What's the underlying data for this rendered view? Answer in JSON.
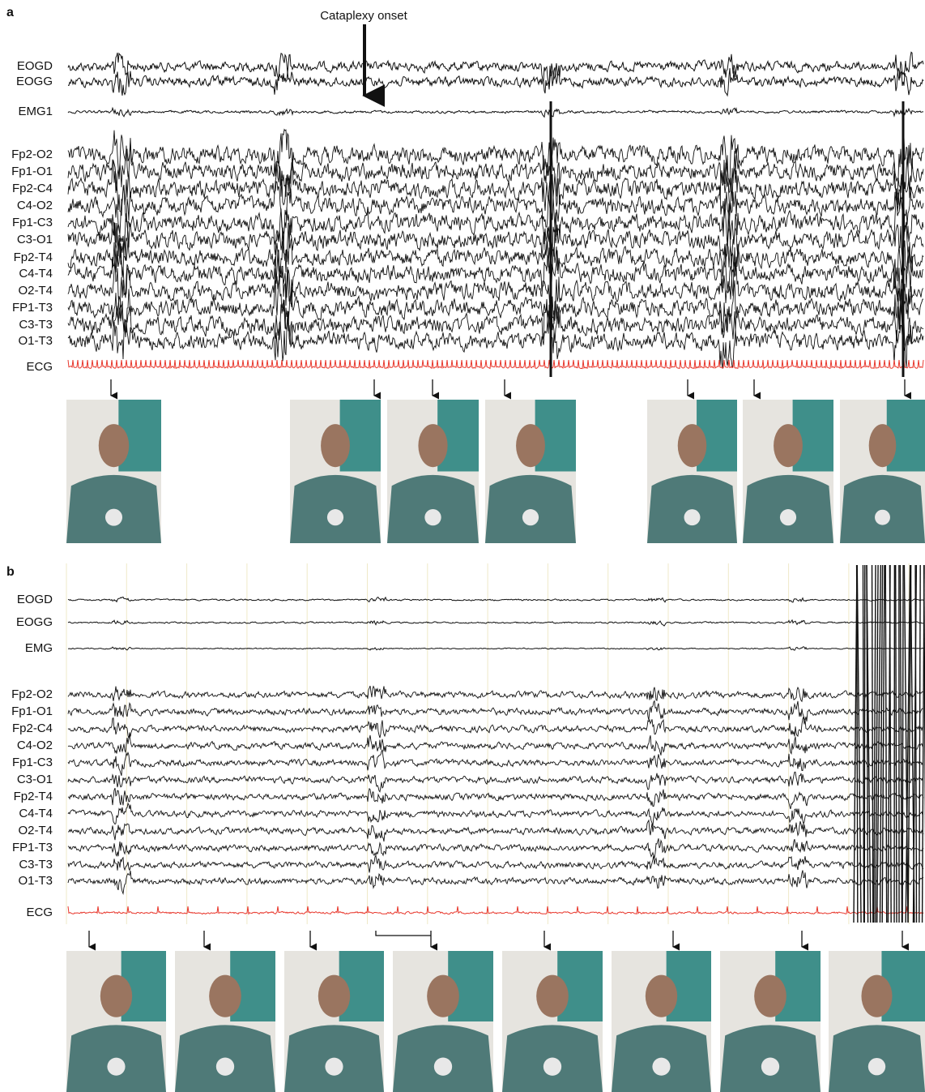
{
  "panel_a": {
    "label": "a",
    "annotation": "Cataplexy onset",
    "channels": [
      "EOGD",
      "EOGG",
      "EMG1",
      "Fp2-O2",
      "Fp1-O1",
      "Fp2-C4",
      "C4-O2",
      "Fp1-C3",
      "C3-O1",
      "Fp2-T4",
      "C4-T4",
      "O2-T4",
      "FP1-T3",
      "C3-T3",
      "O1-T3",
      "ECG"
    ]
  },
  "panel_b": {
    "label": "b",
    "channels": [
      "EOGD",
      "EOGG",
      "EMG",
      "Fp2-O2",
      "Fp1-O1",
      "Fp2-C4",
      "C4-O2",
      "Fp1-C3",
      "C3-O1",
      "Fp2-T4",
      "C4-T4",
      "O2-T4",
      "FP1-T3",
      "C3-T3",
      "O1-T3",
      "ECG"
    ]
  }
}
